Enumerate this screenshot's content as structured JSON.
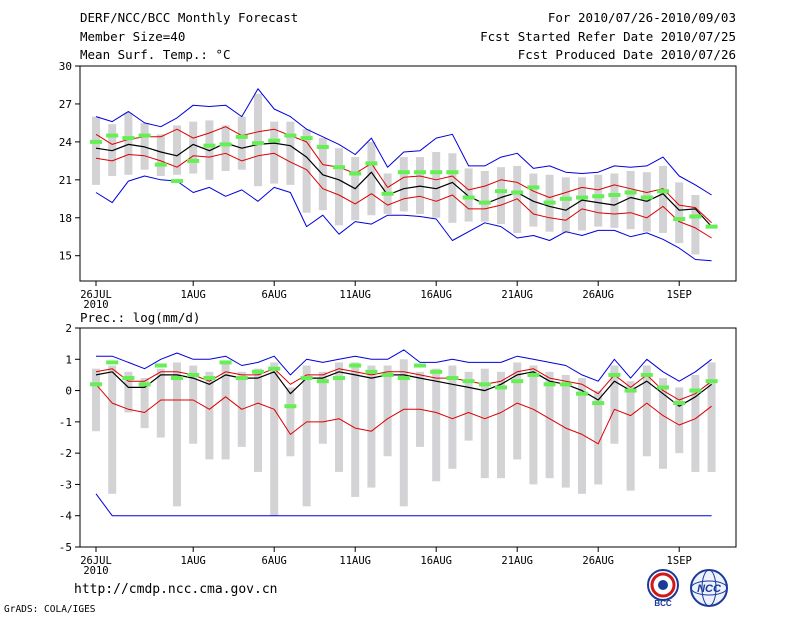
{
  "header": {
    "left": [
      "DERF/NCC/BCC Monthly Forecast",
      "Member Size=40",
      "Mean Surf. Temp.: °C"
    ],
    "right": [
      "For 2010/07/26-2010/09/03",
      "Fcst Started Refer Date 2010/07/25",
      "Fcst Produced Date 2010/07/26"
    ]
  },
  "footer": {
    "url": "http://cmdp.ncc.cma.gov.cn",
    "grads": "GrADS: COLA/IGES"
  },
  "logos": {
    "bcc": "BCC",
    "ncc": "NCC"
  },
  "colors": {
    "box": "#d3d3d6",
    "obs": "#66ee55",
    "mean": "#000000",
    "range": "#0000dd",
    "spread": "#dd0000"
  },
  "chart_data": [
    {
      "type": "line",
      "title": "Mean Surf. Temp.: °C",
      "x": [
        0,
        1,
        2,
        3,
        4,
        5,
        6,
        7,
        8,
        9,
        10,
        11,
        12,
        13,
        14,
        15,
        16,
        17,
        18,
        19,
        20,
        21,
        22,
        23,
        24,
        25,
        26,
        27,
        28,
        29,
        30,
        31,
        32,
        33,
        34,
        35,
        36,
        37,
        38,
        39
      ],
      "x_tick_positions": [
        0,
        6,
        11,
        16,
        21,
        26,
        31,
        36
      ],
      "x_tick_labels": [
        "26JUL",
        "1AUG",
        "6AUG",
        "11AUG",
        "16AUG",
        "21AUG",
        "26AUG",
        "1SEP"
      ],
      "x_sublabel": "2010",
      "ylim": [
        13,
        30
      ],
      "y_ticks": [
        15,
        18,
        21,
        24,
        27,
        30
      ],
      "series": [
        {
          "name": "obs",
          "values": [
            24.0,
            24.5,
            24.3,
            24.5,
            22.2,
            20.9,
            22.5,
            23.7,
            23.8,
            24.4,
            23.9,
            24.1,
            24.5,
            24.3,
            23.6,
            22.0,
            21.5,
            22.3,
            19.9,
            21.6,
            21.6,
            21.6,
            21.6,
            19.6,
            19.2,
            20.1,
            20.0,
            20.4,
            19.2,
            19.5,
            19.6,
            19.7,
            19.8,
            20.0,
            19.6,
            20.1,
            17.9,
            18.1,
            17.3,
            null
          ]
        },
        {
          "name": "mean",
          "values": [
            23.5,
            23.3,
            23.8,
            23.6,
            23.2,
            22.9,
            23.8,
            23.3,
            23.9,
            23.5,
            23.8,
            23.9,
            23.7,
            22.8,
            21.4,
            21.0,
            20.3,
            21.6,
            19.8,
            20.3,
            20.5,
            20.3,
            20.8,
            19.7,
            19.1,
            19.6,
            20.0,
            19.3,
            18.9,
            18.6,
            19.4,
            19.2,
            19.0,
            19.6,
            19.3,
            19.9,
            18.6,
            18.7,
            17.3,
            null
          ]
        },
        {
          "name": "upper",
          "values": [
            24.6,
            23.8,
            24.2,
            24.4,
            24.4,
            25.0,
            24.3,
            24.7,
            25.2,
            24.5,
            24.8,
            25.0,
            24.5,
            24.0,
            22.2,
            22.0,
            21.5,
            22.3,
            20.4,
            21.2,
            21.3,
            21.0,
            21.3,
            20.2,
            20.5,
            21.0,
            20.8,
            20.1,
            19.6,
            20.0,
            20.4,
            20.2,
            20.6,
            20.3,
            20.0,
            20.3,
            19.0,
            18.8,
            17.6,
            null
          ]
        },
        {
          "name": "lower",
          "values": [
            22.7,
            22.5,
            23.0,
            22.9,
            22.5,
            22.0,
            22.9,
            22.8,
            23.1,
            22.5,
            22.9,
            23.1,
            22.4,
            21.8,
            20.3,
            19.8,
            19.1,
            19.9,
            19.0,
            19.5,
            19.7,
            19.3,
            19.8,
            18.7,
            18.7,
            19.0,
            19.5,
            18.3,
            18.0,
            17.8,
            18.7,
            18.4,
            18.3,
            18.4,
            18.0,
            18.9,
            17.7,
            17.2,
            16.4,
            null
          ]
        },
        {
          "name": "max",
          "values": [
            26.0,
            25.6,
            26.4,
            25.5,
            25.2,
            25.9,
            26.9,
            26.8,
            26.9,
            26.0,
            28.2,
            26.6,
            26.0,
            25.0,
            24.4,
            23.8,
            23.0,
            24.3,
            22.0,
            23.2,
            23.3,
            24.3,
            24.6,
            22.1,
            22.1,
            22.8,
            23.1,
            21.9,
            22.1,
            21.6,
            21.5,
            21.6,
            22.1,
            22.0,
            22.1,
            22.8,
            21.3,
            20.6,
            19.8,
            null
          ]
        },
        {
          "name": "min",
          "values": [
            20.0,
            19.2,
            20.9,
            21.3,
            21.0,
            20.9,
            20.0,
            20.4,
            19.7,
            20.2,
            19.3,
            20.4,
            20.0,
            17.3,
            18.2,
            16.7,
            17.7,
            17.5,
            18.2,
            18.2,
            18.1,
            17.9,
            16.2,
            16.9,
            17.6,
            17.3,
            16.4,
            16.6,
            16.2,
            16.9,
            16.6,
            17.0,
            17.0,
            16.5,
            16.8,
            16.3,
            15.6,
            14.7,
            14.6,
            null
          ]
        },
        {
          "name": "box_top",
          "values": [
            26.0,
            25.4,
            26.3,
            25.5,
            24.6,
            25.3,
            25.6,
            25.7,
            25.3,
            26.0,
            27.8,
            25.6,
            25.6,
            25.0,
            24.3,
            23.5,
            22.8,
            24.0,
            21.5,
            22.8,
            22.8,
            23.2,
            23.1,
            21.9,
            21.7,
            22.0,
            22.1,
            21.5,
            21.4,
            21.2,
            21.2,
            21.4,
            21.5,
            21.7,
            21.6,
            22.1,
            20.8,
            19.8,
            null,
            null
          ]
        },
        {
          "name": "box_bottom",
          "values": [
            20.6,
            21.3,
            21.4,
            21.8,
            21.3,
            21.4,
            21.5,
            21.0,
            21.7,
            21.8,
            20.5,
            20.7,
            20.6,
            18.4,
            18.6,
            17.4,
            17.8,
            18.2,
            18.3,
            18.5,
            18.3,
            18.0,
            17.6,
            17.7,
            17.7,
            17.5,
            16.8,
            17.3,
            16.9,
            16.8,
            17.0,
            17.3,
            17.2,
            17.1,
            16.9,
            16.8,
            16.0,
            15.1,
            null,
            null
          ]
        }
      ]
    },
    {
      "type": "line",
      "title": "Prec.: log(mm/d)",
      "x": [
        0,
        1,
        2,
        3,
        4,
        5,
        6,
        7,
        8,
        9,
        10,
        11,
        12,
        13,
        14,
        15,
        16,
        17,
        18,
        19,
        20,
        21,
        22,
        23,
        24,
        25,
        26,
        27,
        28,
        29,
        30,
        31,
        32,
        33,
        34,
        35,
        36,
        37,
        38,
        39
      ],
      "x_tick_positions": [
        0,
        6,
        11,
        16,
        21,
        26,
        31,
        36
      ],
      "x_tick_labels": [
        "26JUL",
        "1AUG",
        "6AUG",
        "11AUG",
        "16AUG",
        "21AUG",
        "26AUG",
        "1SEP"
      ],
      "x_sublabel": "2010",
      "ylim": [
        -5,
        2
      ],
      "y_ticks": [
        -5,
        -4,
        -3,
        -2,
        -1,
        0,
        1,
        2
      ],
      "series": [
        {
          "name": "obs",
          "values": [
            0.2,
            0.9,
            0.4,
            0.2,
            0.8,
            0.4,
            0.5,
            0.4,
            0.9,
            0.4,
            0.6,
            0.7,
            -0.5,
            0.4,
            0.3,
            0.4,
            0.8,
            0.6,
            0.5,
            0.4,
            0.8,
            0.6,
            0.4,
            0.3,
            0.2,
            0.1,
            0.3,
            0.5,
            0.2,
            0.2,
            -0.1,
            -0.4,
            0.5,
            0.0,
            0.5,
            0.1,
            -0.4,
            0.0,
            0.3,
            null
          ]
        },
        {
          "name": "mean",
          "values": [
            0.5,
            0.6,
            0.1,
            0.1,
            0.5,
            0.5,
            0.4,
            0.2,
            0.5,
            0.4,
            0.4,
            0.6,
            -0.1,
            0.4,
            0.4,
            0.6,
            0.5,
            0.4,
            0.5,
            0.5,
            0.4,
            0.3,
            0.2,
            0.1,
            0.0,
            0.2,
            0.5,
            0.6,
            0.3,
            0.2,
            0.0,
            -0.3,
            0.3,
            0.0,
            0.3,
            -0.1,
            -0.5,
            -0.2,
            0.2,
            null
          ]
        },
        {
          "name": "upper",
          "values": [
            0.6,
            0.7,
            0.3,
            0.3,
            0.6,
            0.6,
            0.5,
            0.3,
            0.6,
            0.5,
            0.5,
            0.7,
            0.2,
            0.5,
            0.5,
            0.7,
            0.6,
            0.5,
            0.6,
            0.6,
            0.5,
            0.4,
            0.4,
            0.3,
            0.2,
            0.3,
            0.6,
            0.7,
            0.4,
            0.3,
            0.2,
            -0.1,
            0.5,
            0.1,
            0.5,
            0.0,
            -0.3,
            -0.1,
            0.3,
            null
          ]
        },
        {
          "name": "lower",
          "values": [
            0.2,
            -0.4,
            -0.6,
            -0.7,
            -0.3,
            -0.3,
            -0.3,
            -0.6,
            -0.2,
            -0.6,
            -0.4,
            -0.6,
            -1.4,
            -1.0,
            -1.0,
            -0.9,
            -1.2,
            -1.3,
            -0.9,
            -0.6,
            -0.6,
            -0.7,
            -0.9,
            -0.7,
            -0.9,
            -0.7,
            -0.4,
            -0.6,
            -0.9,
            -1.2,
            -1.4,
            -1.7,
            -0.6,
            -0.8,
            -0.4,
            -0.8,
            -1.1,
            -0.9,
            -0.5,
            null
          ]
        },
        {
          "name": "max",
          "values": [
            1.1,
            1.1,
            0.9,
            0.7,
            1.0,
            1.2,
            1.0,
            1.0,
            1.1,
            0.8,
            0.9,
            1.1,
            0.5,
            1.0,
            0.9,
            1.0,
            1.1,
            1.0,
            1.0,
            1.3,
            0.9,
            0.9,
            1.0,
            0.9,
            0.9,
            0.9,
            1.1,
            1.0,
            0.9,
            0.8,
            0.5,
            0.3,
            1.0,
            0.4,
            1.0,
            0.6,
            0.3,
            0.6,
            1.0,
            null
          ]
        },
        {
          "name": "min",
          "values": [
            -3.3,
            -4.0,
            -4.0,
            -4.0,
            -4.0,
            -4.0,
            -4.0,
            -4.0,
            -4.0,
            -4.0,
            -4.0,
            -4.0,
            -4.0,
            -4.0,
            -4.0,
            -4.0,
            -4.0,
            -4.0,
            -4.0,
            -4.0,
            -4.0,
            -4.0,
            -4.0,
            -4.0,
            -4.0,
            -4.0,
            -4.0,
            -4.0,
            -4.0,
            -4.0,
            -4.0,
            -4.0,
            -4.0,
            -4.0,
            -4.0,
            -4.0,
            -4.0,
            -4.0,
            -4.0,
            null
          ]
        },
        {
          "name": "box_top",
          "values": [
            0.7,
            0.8,
            0.6,
            0.4,
            0.7,
            0.9,
            0.8,
            0.6,
            0.9,
            0.6,
            0.7,
            0.9,
            0.1,
            0.8,
            0.6,
            0.9,
            0.9,
            0.8,
            0.8,
            1.0,
            0.6,
            0.7,
            0.8,
            0.6,
            0.7,
            0.6,
            0.9,
            0.8,
            0.6,
            0.5,
            0.4,
            0.0,
            0.8,
            0.3,
            0.8,
            0.4,
            0.1,
            0.5,
            0.9,
            null
          ]
        },
        {
          "name": "box_bottom",
          "values": [
            -1.3,
            -3.3,
            -0.7,
            -1.2,
            -1.5,
            -3.7,
            -1.7,
            -2.2,
            -2.2,
            -1.8,
            -2.6,
            -4.0,
            -2.1,
            -3.7,
            -1.7,
            -2.6,
            -3.4,
            -3.1,
            -2.1,
            -3.7,
            -1.8,
            -2.9,
            -2.5,
            -1.6,
            -2.8,
            -2.8,
            -2.2,
            -3.0,
            -2.8,
            -3.1,
            -3.3,
            -3.0,
            -1.7,
            -3.2,
            -2.1,
            -2.5,
            -2.0,
            -2.6,
            -2.6,
            null
          ]
        }
      ]
    }
  ]
}
